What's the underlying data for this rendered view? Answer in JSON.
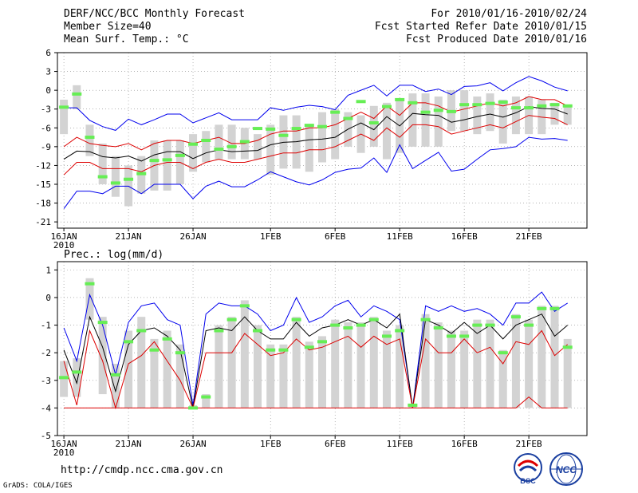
{
  "header": {
    "line1_left": "DERF/NCC/BCC Monthly Forecast",
    "line2_left": "Member Size=40",
    "line3_left": "Mean Surf. Temp.: °C",
    "line1_right": "For 2010/01/16-2010/02/24",
    "line2_right": "Fcst Started Refer Date 2010/01/15",
    "line3_right": "Fcst Produced Date 2010/01/16"
  },
  "footer": {
    "url": "http://cmdp.ncc.cma.gov.cn",
    "grads": "GrADS: COLA/IGES",
    "logo_left": "BCC",
    "logo_right": "NCC"
  },
  "colors": {
    "gray": "#d3d3d3",
    "green": "#66ee55",
    "blue": "#0000ee",
    "red": "#dd0000",
    "black": "#000000",
    "grid": "#888888"
  },
  "chart_data": [
    {
      "type": "line",
      "title": "Mean Surf. Temp.: °C",
      "ylim": [
        -22,
        6
      ],
      "yticks": [
        6,
        3,
        0,
        -3,
        -6,
        -9,
        -12,
        -15,
        -18,
        -21
      ],
      "xlim": [
        15.5,
        56.5
      ],
      "xtick_days": [
        16,
        21,
        26,
        32,
        37,
        42,
        47,
        52
      ],
      "xtick_labels": [
        "16JAN",
        "21JAN",
        "26JAN",
        "1FEB",
        "6FEB",
        "11FEB",
        "16FEB",
        "21FEB"
      ],
      "xyear": "2010",
      "days": [
        16,
        17,
        18,
        19,
        20,
        21,
        22,
        23,
        24,
        25,
        26,
        27,
        28,
        29,
        30,
        31,
        32,
        33,
        34,
        35,
        36,
        37,
        38,
        39,
        40,
        41,
        42,
        43,
        44,
        45,
        46,
        47,
        48,
        49,
        50,
        51,
        52,
        53,
        54,
        55
      ],
      "box_top": [
        -1.5,
        0.8,
        -5.5,
        -8.5,
        -10.5,
        -12,
        -10.5,
        -8,
        -8,
        -8,
        -7,
        -6.5,
        -5.5,
        -5.5,
        -6,
        -7,
        -5.5,
        -4,
        -4,
        -5.5,
        -3.5,
        -3,
        -3.5,
        -4,
        -2.5,
        -2,
        -1.5,
        -0.5,
        -0.5,
        -1,
        0,
        0,
        -1,
        -0.5,
        -1.5,
        -1,
        -1,
        -1.5,
        -2,
        -2.5
      ],
      "box_bottom": [
        -7,
        -3,
        -10.5,
        -15,
        -17,
        -18.5,
        -16.5,
        -16,
        -16,
        -15,
        -13,
        -11.5,
        -11,
        -11,
        -11,
        -11,
        -13.5,
        -12.5,
        -12.5,
        -13,
        -11.5,
        -11,
        -9,
        -10,
        -9,
        -11,
        -10,
        -9,
        -9,
        -9,
        -6.5,
        -6.5,
        -7,
        -6.5,
        -8.5,
        -7,
        -7,
        -7,
        -5.5,
        -5.5
      ],
      "mode": [
        -2.7,
        -0.6,
        -7.5,
        -13.8,
        -14.8,
        -14.2,
        -13.3,
        -11.2,
        -11.1,
        -10.4,
        -8.6,
        -8,
        -9.4,
        -9,
        -8.2,
        -6.1,
        -6.2,
        -7.2,
        -6.1,
        -5.6,
        -5.8,
        -3.5,
        -4.5,
        -1.8,
        -5.2,
        -2.6,
        -1.5,
        -2,
        -3.5,
        -3.2,
        -3.4,
        -2.3,
        -2.3,
        -2.1,
        -1.9,
        -2.8,
        -2.8,
        -2.5,
        -2.3,
        -2.5
      ],
      "series": [
        {
          "name": "max",
          "color": "blue",
          "values": [
            -2.8,
            -2.8,
            -4.8,
            -5.8,
            -6.4,
            -4.6,
            -5.5,
            -4.7,
            -3.8,
            -3.8,
            -5.2,
            -4.4,
            -3.6,
            -4.7,
            -4.7,
            -4.7,
            -2.8,
            -3.2,
            -2.7,
            -2.4,
            -2.6,
            -3.1,
            -0.8,
            0,
            0.8,
            -0.9,
            0.8,
            0.8,
            -0.2,
            0.2,
            -0.7,
            0.6,
            0.7,
            1.2,
            -0.1,
            1.2,
            2.2,
            1.5,
            0.5,
            -0.1
          ]
        },
        {
          "name": "upper",
          "color": "red",
          "values": [
            -9,
            -7.5,
            -8.5,
            -8.8,
            -9,
            -8.5,
            -9.5,
            -8.5,
            -8,
            -8,
            -8.5,
            -8,
            -7.5,
            -8.5,
            -8.5,
            -8,
            -7,
            -6.5,
            -6.5,
            -6,
            -6,
            -5.5,
            -4.5,
            -3.5,
            -4.5,
            -2.5,
            -4,
            -2,
            -2,
            -2.5,
            -3.5,
            -3,
            -2.5,
            -2,
            -2.5,
            -2,
            -1,
            -1.5,
            -1.5,
            -2.5
          ]
        },
        {
          "name": "mean",
          "color": "black",
          "values": [
            -11,
            -9.7,
            -9.8,
            -10.6,
            -10.8,
            -10.5,
            -11.3,
            -10.3,
            -9.8,
            -9.8,
            -10.9,
            -10,
            -9.5,
            -9.8,
            -9.7,
            -9.6,
            -8.7,
            -8.3,
            -8.2,
            -7.9,
            -7.8,
            -7.5,
            -6.2,
            -5.2,
            -6.3,
            -4.2,
            -5.7,
            -3.7,
            -3.9,
            -4,
            -5.1,
            -4.7,
            -4.2,
            -3.8,
            -4.3,
            -3.6,
            -2.6,
            -2.9,
            -3,
            -3.8
          ]
        },
        {
          "name": "lower",
          "color": "red",
          "values": [
            -13.5,
            -11.5,
            -11.5,
            -12.5,
            -12.5,
            -12.5,
            -13,
            -12,
            -11.5,
            -11.5,
            -12.5,
            -11.5,
            -11,
            -11.5,
            -11.5,
            -11,
            -10.5,
            -10,
            -10,
            -9.5,
            -9.5,
            -9,
            -8,
            -7,
            -8,
            -6,
            -7.5,
            -5.5,
            -5.5,
            -5.8,
            -7,
            -6.5,
            -6,
            -5.5,
            -6,
            -5,
            -4,
            -4.3,
            -4.5,
            -5.5
          ]
        },
        {
          "name": "min",
          "color": "blue",
          "values": [
            -18.9,
            -16.1,
            -16.1,
            -16.5,
            -15.3,
            -15.3,
            -16.5,
            -15,
            -15,
            -15,
            -17.3,
            -15.3,
            -14.5,
            -15.4,
            -15.4,
            -14.3,
            -13,
            -13.8,
            -14.6,
            -15.1,
            -14.3,
            -13.1,
            -12.6,
            -12.4,
            -10.8,
            -13.1,
            -8.7,
            -12.5,
            -11.2,
            -9.9,
            -12.9,
            -12.6,
            -11,
            -9.5,
            -9.3,
            -9,
            -7.5,
            -7.8,
            -7.7,
            -8
          ]
        }
      ]
    },
    {
      "type": "line",
      "title": "Prec.: log(mm/d)",
      "ylim": [
        -5,
        1.3
      ],
      "yticks": [
        1,
        0,
        -1,
        -2,
        -3,
        -4,
        -5
      ],
      "xlim": [
        15.5,
        56.5
      ],
      "xtick_days": [
        16,
        21,
        26,
        32,
        37,
        42,
        47,
        52
      ],
      "xtick_labels": [
        "16JAN",
        "21JAN",
        "26JAN",
        "1FEB",
        "6FEB",
        "11FEB",
        "16FEB",
        "21FEB"
      ],
      "xyear": "2010",
      "days": [
        16,
        17,
        18,
        19,
        20,
        21,
        22,
        23,
        24,
        25,
        26,
        27,
        28,
        29,
        30,
        31,
        32,
        33,
        34,
        35,
        36,
        37,
        38,
        39,
        40,
        41,
        42,
        43,
        44,
        45,
        46,
        47,
        48,
        49,
        50,
        51,
        52,
        53,
        54,
        55
      ],
      "box_top": [
        -2.3,
        -2.2,
        0.7,
        -0.7,
        -2.4,
        -1.2,
        -0.7,
        -1.5,
        -1.2,
        -1.7,
        -3.9,
        -3.5,
        -1,
        -0.7,
        -0.1,
        -1,
        -1.7,
        -1.7,
        -0.7,
        -1.6,
        -1.4,
        -0.8,
        -0.9,
        -0.9,
        -0.7,
        -1.2,
        -1,
        -3.9,
        -0.6,
        -0.9,
        -1.2,
        -1.2,
        -0.8,
        -0.8,
        -1.9,
        -0.6,
        -0.8,
        -0.3,
        -0.3,
        -1.5
      ],
      "box_bottom": [
        -3.6,
        -3.6,
        -0.8,
        -3.5,
        -4,
        -4,
        -4,
        -4,
        -4,
        -4,
        -4,
        -4,
        -4,
        -4,
        -4,
        -4,
        -4,
        -4,
        -4,
        -4,
        -4,
        -4,
        -4,
        -4,
        -4,
        -4,
        -4,
        -4,
        -4,
        -4,
        -4,
        -4,
        -4,
        -4,
        -4,
        -4,
        -4,
        -4,
        -4,
        -4
      ],
      "mode": [
        -2.9,
        -2.7,
        0.5,
        -0.9,
        -2.8,
        -1.6,
        -1.2,
        -1.9,
        -1.5,
        -2,
        -4,
        -3.6,
        -1.2,
        -0.8,
        -0.3,
        -1.2,
        -1.9,
        -1.9,
        -0.8,
        -1.8,
        -1.6,
        -1,
        -1.1,
        -1,
        -0.8,
        -1.4,
        -1.2,
        -3.9,
        -0.8,
        -1.1,
        -1.4,
        -1.4,
        -1,
        -1,
        -2,
        -0.7,
        -1,
        -0.4,
        -0.4,
        -1.8
      ],
      "series": [
        {
          "name": "max",
          "color": "blue",
          "values": [
            -1.1,
            -2.3,
            0.1,
            -1,
            -2.8,
            -0.9,
            -0.3,
            -0.2,
            -0.8,
            -1,
            -3.9,
            -0.6,
            -0.2,
            -0.3,
            -0.3,
            -0.6,
            -1.2,
            -1,
            0,
            -0.9,
            -0.7,
            -0.3,
            -0.1,
            -0.7,
            -0.3,
            -0.5,
            -0.8,
            -4,
            -0.3,
            -0.5,
            -0.3,
            -0.5,
            -0.4,
            -0.6,
            -1,
            -0.2,
            -0.2,
            0.2,
            -0.5,
            -0.2
          ]
        },
        {
          "name": "mean",
          "color": "black",
          "values": [
            -1.9,
            -3.1,
            -0.7,
            -1.8,
            -3.4,
            -1.7,
            -1.2,
            -1.1,
            -1.4,
            -1.9,
            -4,
            -1.2,
            -1.1,
            -1.2,
            -0.7,
            -1.2,
            -1.5,
            -1.5,
            -0.9,
            -1.4,
            -1.1,
            -1,
            -0.8,
            -1,
            -0.8,
            -1.1,
            -0.6,
            -4,
            -0.8,
            -1,
            -1.3,
            -0.9,
            -1.3,
            -1,
            -1.5,
            -1,
            -0.8,
            -0.6,
            -1.4,
            -1
          ]
        },
        {
          "name": "upper",
          "color": "red",
          "values": [
            -2.3,
            -3.9,
            -1.2,
            -2.3,
            -4,
            -2.4,
            -2.1,
            -1.6,
            -2.3,
            -3,
            -4,
            -2,
            -2,
            -2,
            -1.3,
            -1.7,
            -2.1,
            -2,
            -1.5,
            -1.9,
            -1.8,
            -1.6,
            -1.4,
            -1.8,
            -1.4,
            -1.7,
            -1.5,
            -4,
            -1.5,
            -2,
            -2,
            -1.5,
            -2,
            -1.8,
            -2.4,
            -1.6,
            -1.7,
            -1.2,
            -2.1,
            -1.7
          ]
        },
        {
          "name": "lower",
          "color": "red",
          "values": [
            -4,
            -4,
            -4,
            -4,
            -4,
            -4,
            -4,
            -4,
            -4,
            -4,
            -4,
            -4,
            -4,
            -4,
            -4,
            -4,
            -4,
            -4,
            -4,
            -4,
            -4,
            -4,
            -4,
            -4,
            -4,
            -4,
            -4,
            -4,
            -4,
            -4,
            -4,
            -4,
            -4,
            -4,
            -4,
            -4,
            -3.6,
            -4,
            -4,
            -4
          ]
        }
      ]
    }
  ]
}
